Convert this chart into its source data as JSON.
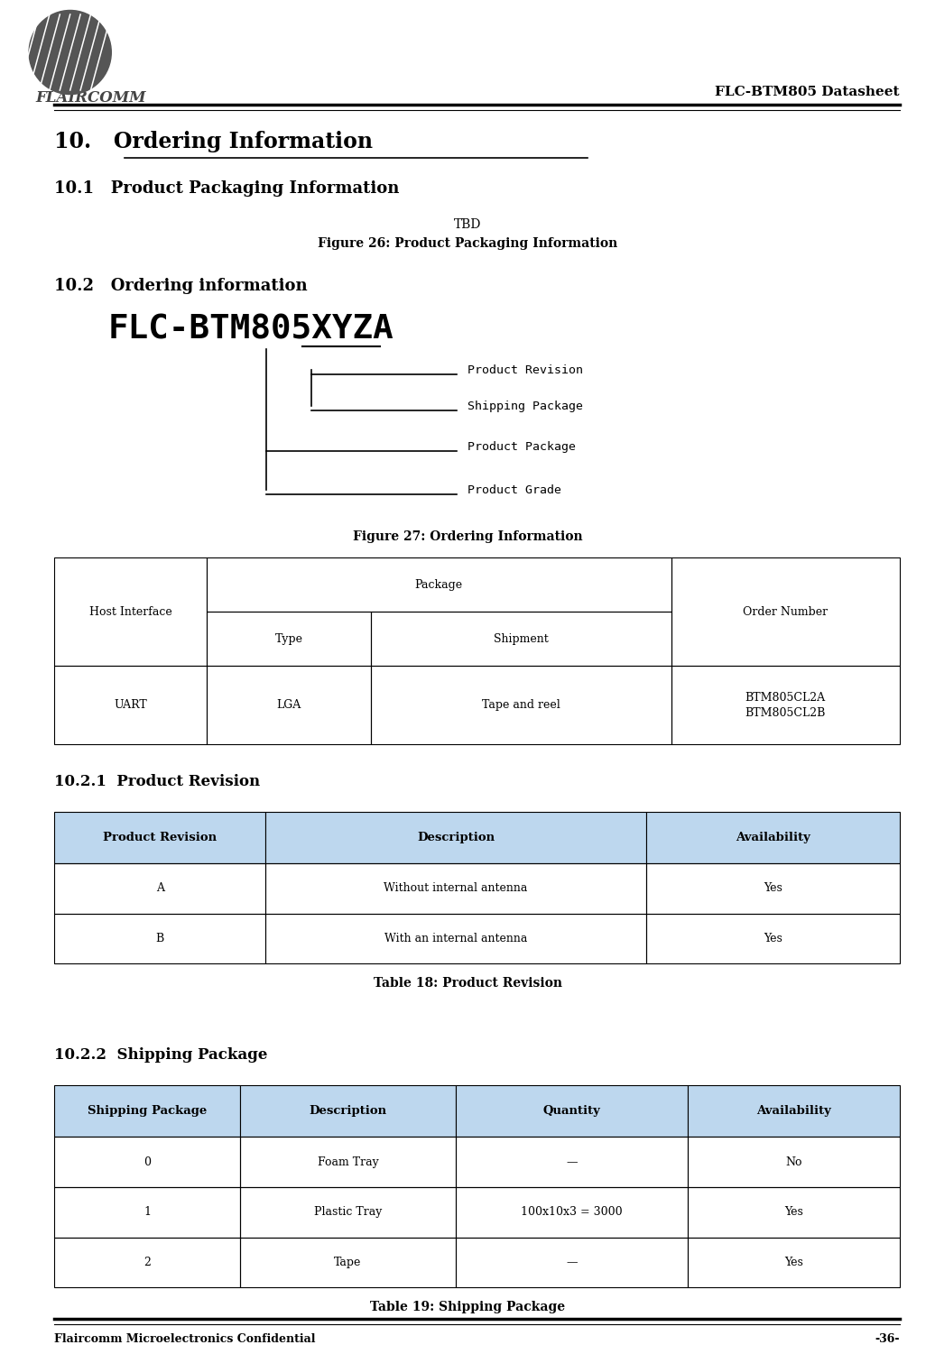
{
  "page_width": 10.36,
  "page_height": 15.01,
  "bg_color": "#ffffff",
  "logo_text": "FLAIRCOMM",
  "header_right_text": "FLC-BTM805 Datasheet",
  "footer_left_text": "Flaircomm Microelectronics Confidential",
  "footer_right_text": "-36-",
  "section10_title": "10.   Ordering Information",
  "section101_title": "10.1   Product Packaging Information",
  "tbd_text": "TBD",
  "figure26_caption": "Figure 26: Product Packaging Information",
  "section102_title": "10.2   Ordering information",
  "ordering_code": "FLC-BTM805XYZA",
  "diagram_labels": [
    "Product Revision",
    "Shipping Package",
    "Product Package",
    "Product Grade"
  ],
  "figure27_caption": "Figure 27: Ordering Information",
  "section1021_title": "10.2.1  Product Revision",
  "table2_headers": [
    "Product Revision",
    "Description",
    "Availability"
  ],
  "table2_data": [
    [
      "A",
      "Without internal antenna",
      "Yes"
    ],
    [
      "B",
      "With an internal antenna",
      "Yes"
    ]
  ],
  "table18_caption": "Table 18: Product Revision",
  "section1022_title": "10.2.2  Shipping Package",
  "table3_headers": [
    "Shipping Package",
    "Description",
    "Quantity",
    "Availability"
  ],
  "table3_data": [
    [
      "0",
      "Foam Tray",
      "—",
      "No"
    ],
    [
      "1",
      "Plastic Tray",
      "100x10x3 = 3000",
      "Yes"
    ],
    [
      "2",
      "Tape",
      "—",
      "Yes"
    ]
  ],
  "table19_caption": "Table 19: Shipping Package",
  "table_header_bg": "#bdd7ee",
  "table_border_color": "#000000"
}
